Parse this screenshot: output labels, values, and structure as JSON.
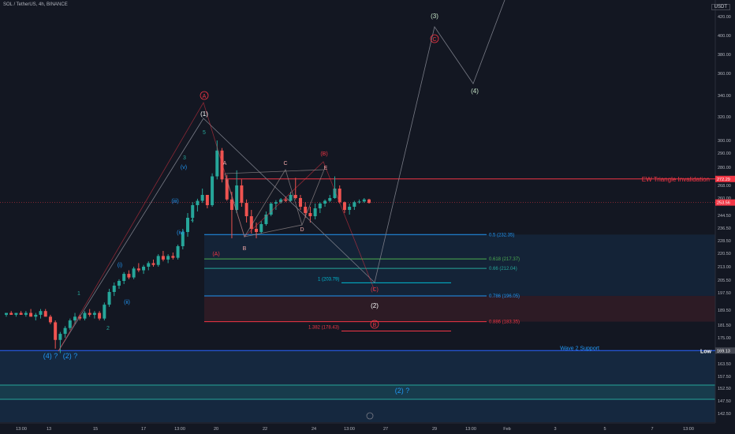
{
  "header": {
    "symbol": "SOL / TetherUS, 4h, BINANCE",
    "currency": "USDT"
  },
  "chart_data": {
    "type": "candlestick",
    "y_ticks": [
      142.5,
      147.5,
      152.5,
      157.5,
      163.5,
      168.5,
      175.0,
      181.5,
      189.5,
      197.5,
      205.5,
      213.0,
      220.5,
      228.5,
      236.5,
      244.5,
      252.0,
      260.0,
      268.0,
      280.0,
      290.0,
      300.0,
      320.0,
      340.0,
      360.0,
      380.0,
      400.0,
      420.0
    ],
    "x_ticks": [
      "13:00",
      "13",
      "15",
      "17",
      "13:00",
      "20",
      "22",
      "24",
      "13:00",
      "27",
      "29",
      "13:00",
      "Feb",
      "3",
      "5",
      "7",
      "13:00"
    ],
    "price_labels": [
      {
        "text": "272.29",
        "value": 272.29,
        "color": "#f23645"
      },
      {
        "text": "253.56",
        "value": 253.56,
        "color": "#f23645"
      },
      {
        "text": "169.13",
        "value": 169.13,
        "color": "#434651"
      }
    ],
    "horizontal_lines": [
      {
        "name": "ew-triangle-invalidation",
        "value": 272.29,
        "label": "EW Triangle Invalidation",
        "color": "#f23645"
      },
      {
        "name": "wave-2-support",
        "value": 169.13,
        "label": "Wave 2 Support",
        "color": "#2962ff"
      }
    ],
    "fib_levels": [
      {
        "label": "0.5 (232.35)",
        "value": 232.35,
        "color": "#2196f3"
      },
      {
        "label": "0.618 (217.37)",
        "value": 217.37,
        "color": "#4caf50"
      },
      {
        "label": "0.66 (212.04)",
        "value": 212.04,
        "color": "#26a69a"
      },
      {
        "label": "1 (203.79)",
        "value": 203.79,
        "color": "#00bcd4"
      },
      {
        "label": "0.786 (196.05)",
        "value": 196.05,
        "color": "#2196f3"
      },
      {
        "label": "1.382 (178.43)",
        "value": 178.43,
        "color": "#f23645"
      },
      {
        "label": "0.886 (183.35)",
        "value": 183.35,
        "color": "#f23645"
      }
    ],
    "wave_labels": [
      {
        "text": "1",
        "color": "#26a69a",
        "circled": false
      },
      {
        "text": "2",
        "color": "#26a69a",
        "circled": false
      },
      {
        "text": "3",
        "color": "#26a69a",
        "circled": false
      },
      {
        "text": "4",
        "color": "#26a69a",
        "circled": false
      },
      {
        "text": "5",
        "color": "#26a69a",
        "circled": false
      },
      {
        "text": "(i)",
        "color": "#2196f3",
        "circled": false
      },
      {
        "text": "(ii)",
        "color": "#2196f3",
        "circled": false
      },
      {
        "text": "(iii)",
        "color": "#2196f3",
        "circled": false
      },
      {
        "text": "(iv)",
        "color": "#2196f3",
        "circled": false
      },
      {
        "text": "(v)",
        "color": "#2196f3",
        "circled": false
      },
      {
        "text": "(1)",
        "color": "#ffffff",
        "circled": false
      },
      {
        "text": "(2)",
        "color": "#ffffff",
        "circled": false
      },
      {
        "text": "(3)",
        "color": "#c8e6c9",
        "circled": false
      },
      {
        "text": "(4)",
        "color": "#c8e6c9",
        "circled": false
      },
      {
        "text": "A",
        "color": "#f23645",
        "circled": true
      },
      {
        "text": "B",
        "color": "#f23645",
        "circled": true
      },
      {
        "text": "C",
        "color": "#f23645",
        "circled": true
      },
      {
        "text": "(B)",
        "color": "#f23645",
        "circled": false
      },
      {
        "text": "(C)",
        "color": "#f23645",
        "circled": false
      },
      {
        "text": "(A)",
        "color": "#f23645",
        "circled": false
      },
      {
        "text": "A",
        "color": "#f0a8a8",
        "circled": false
      },
      {
        "text": "B",
        "color": "#f0a8a8",
        "circled": false
      },
      {
        "text": "C",
        "color": "#f0a8a8",
        "circled": false
      },
      {
        "text": "D",
        "color": "#f0a8a8",
        "circled": false
      },
      {
        "text": "E",
        "color": "#f0a8a8",
        "circled": false
      },
      {
        "text": "(4) ?",
        "color": "#2196f3",
        "circled": false
      },
      {
        "text": "(2) ?",
        "color": "#2196f3",
        "circled": false
      },
      {
        "text": "(2) ?",
        "color": "#2196f3",
        "circled": false
      }
    ],
    "low_label": "Low",
    "candles": [
      [
        187,
        188,
        186,
        188
      ],
      [
        188,
        189,
        187,
        187
      ],
      [
        187,
        188,
        186,
        188
      ],
      [
        188,
        189,
        187,
        187
      ],
      [
        187,
        189,
        186,
        188
      ],
      [
        188,
        190,
        186,
        186
      ],
      [
        186,
        188,
        184,
        187
      ],
      [
        187,
        190,
        185,
        189
      ],
      [
        189,
        190,
        186,
        186
      ],
      [
        186,
        187,
        182,
        183
      ],
      [
        183,
        184,
        170,
        174
      ],
      [
        174,
        178,
        168,
        177
      ],
      [
        177,
        181,
        175,
        180
      ],
      [
        180,
        185,
        179,
        184
      ],
      [
        184,
        188,
        182,
        186
      ],
      [
        186,
        187,
        184,
        185
      ],
      [
        185,
        189,
        184,
        188
      ],
      [
        188,
        190,
        186,
        187
      ],
      [
        187,
        189,
        185,
        188
      ],
      [
        188,
        189,
        184,
        185
      ],
      [
        185,
        193,
        184,
        192
      ],
      [
        192,
        200,
        191,
        198
      ],
      [
        198,
        204,
        196,
        202
      ],
      [
        202,
        206,
        200,
        205
      ],
      [
        205,
        210,
        203,
        209
      ],
      [
        209,
        211,
        206,
        207
      ],
      [
        207,
        213,
        206,
        212
      ],
      [
        212,
        215,
        210,
        211
      ],
      [
        211,
        214,
        209,
        213
      ],
      [
        213,
        216,
        211,
        215
      ],
      [
        215,
        217,
        213,
        214
      ],
      [
        214,
        220,
        213,
        219
      ],
      [
        219,
        222,
        216,
        217
      ],
      [
        217,
        220,
        215,
        219
      ],
      [
        219,
        221,
        217,
        218
      ],
      [
        218,
        226,
        217,
        225
      ],
      [
        225,
        236,
        223,
        234
      ],
      [
        234,
        246,
        231,
        243
      ],
      [
        243,
        254,
        240,
        251
      ],
      [
        251,
        259,
        247,
        256
      ],
      [
        256,
        266,
        253,
        262
      ],
      [
        262,
        262,
        249,
        251
      ],
      [
        251,
        276,
        250,
        274
      ],
      [
        274,
        300,
        272,
        292
      ],
      [
        292,
        294,
        270,
        272
      ],
      [
        272,
        275,
        256,
        258
      ],
      [
        258,
        264,
        230,
        248
      ],
      [
        248,
        278,
        246,
        268
      ],
      [
        268,
        272,
        250,
        253
      ],
      [
        253,
        258,
        240,
        244
      ],
      [
        244,
        248,
        233,
        236
      ],
      [
        236,
        240,
        230,
        234
      ],
      [
        234,
        241,
        233,
        239
      ],
      [
        239,
        247,
        238,
        245
      ],
      [
        245,
        254,
        244,
        252
      ],
      [
        252,
        257,
        248,
        254
      ],
      [
        254,
        260,
        252,
        258
      ],
      [
        258,
        261,
        254,
        256
      ],
      [
        256,
        264,
        255,
        262
      ],
      [
        262,
        273,
        258,
        260
      ],
      [
        260,
        262,
        248,
        250
      ],
      [
        250,
        254,
        243,
        246
      ],
      [
        246,
        250,
        240,
        244
      ],
      [
        244,
        252,
        242,
        249
      ],
      [
        249,
        254,
        246,
        252
      ],
      [
        252,
        258,
        250,
        256
      ],
      [
        256,
        262,
        254,
        260
      ],
      [
        260,
        274,
        259,
        266
      ],
      [
        266,
        268,
        252,
        254
      ],
      [
        254,
        255,
        246,
        248
      ],
      [
        248,
        252,
        245,
        250
      ],
      [
        250,
        256,
        248,
        254
      ],
      [
        254,
        258,
        252,
        255
      ],
      [
        255,
        260,
        253,
        258
      ],
      [
        258,
        259,
        252,
        253
      ]
    ]
  }
}
